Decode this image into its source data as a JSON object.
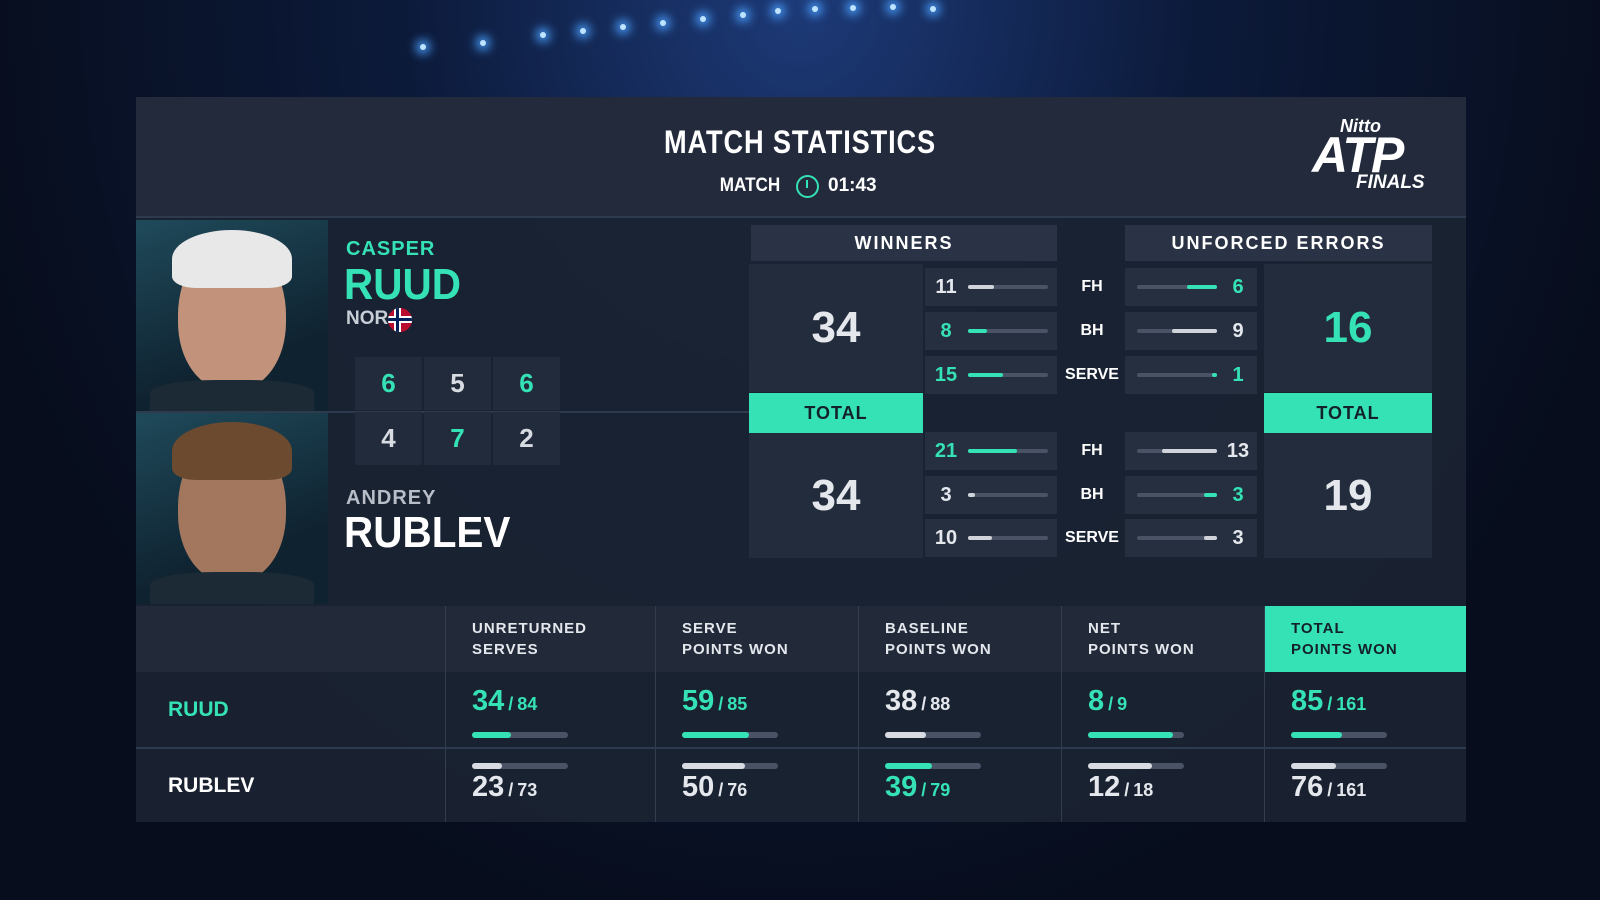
{
  "header": {
    "title": "MATCH STATISTICS",
    "match_label": "MATCH",
    "duration": "01:43"
  },
  "logo": {
    "brand": "Nitto",
    "name": "ATP",
    "event": "FINALS"
  },
  "players": [
    {
      "first_name": "CASPER",
      "last_name": "RUUD",
      "country": "NOR",
      "sets": [
        6,
        5,
        6
      ]
    },
    {
      "first_name": "ANDREY",
      "last_name": "RUBLEV",
      "sets": [
        4,
        7,
        2
      ]
    }
  ],
  "shot_labels": [
    "FH",
    "BH",
    "SERVE"
  ],
  "winners": {
    "title": "WINNERS",
    "total_label": "TOTAL",
    "players": [
      {
        "total": 34,
        "breakdown": [
          11,
          8,
          15
        ]
      },
      {
        "total": 34,
        "breakdown": [
          21,
          3,
          10
        ]
      }
    ]
  },
  "unforced_errors": {
    "title": "UNFORCED ERRORS",
    "total_label": "TOTAL",
    "players": [
      {
        "total": 16,
        "breakdown": [
          6,
          9,
          1
        ]
      },
      {
        "total": 19,
        "breakdown": [
          13,
          3,
          3
        ]
      }
    ]
  },
  "summary": {
    "columns": [
      "UNRETURNED\nSERVES",
      "SERVE\nPOINTS WON",
      "BASELINE\nPOINTS WON",
      "NET\nPOINTS WON",
      "TOTAL\nPOINTS WON"
    ],
    "separator": "/",
    "rows": [
      {
        "name": "RUUD",
        "stats": [
          {
            "won": 34,
            "total": 84
          },
          {
            "won": 59,
            "total": 85
          },
          {
            "won": 38,
            "total": 88
          },
          {
            "won": 8,
            "total": 9
          },
          {
            "won": 85,
            "total": 161
          }
        ]
      },
      {
        "name": "RUBLEV",
        "stats": [
          {
            "won": 23,
            "total": 73
          },
          {
            "won": 50,
            "total": 76
          },
          {
            "won": 39,
            "total": 79
          },
          {
            "won": 12,
            "total": 18
          },
          {
            "won": 76,
            "total": 161
          }
        ]
      }
    ]
  }
}
